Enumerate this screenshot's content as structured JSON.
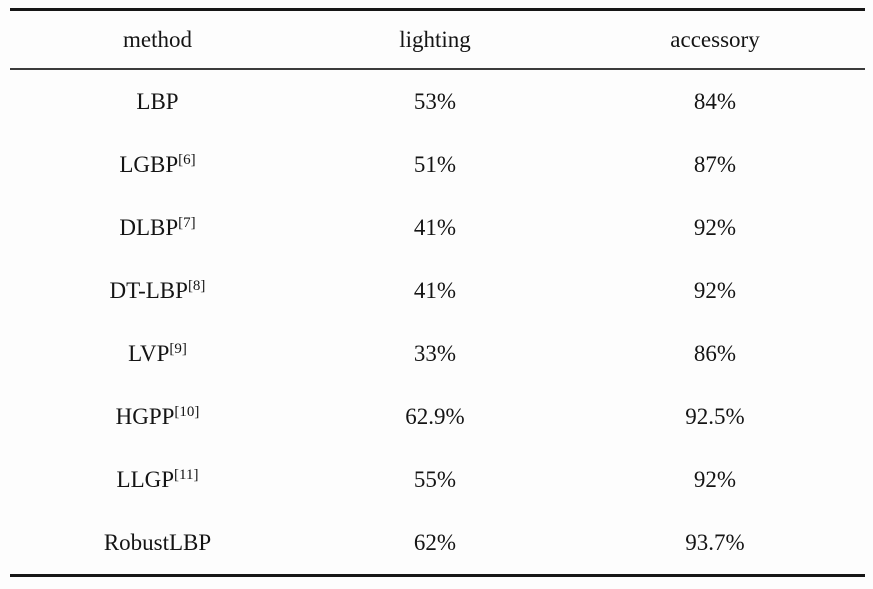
{
  "table": {
    "columns": [
      "method",
      "lighting",
      "accessory"
    ],
    "rows": [
      {
        "method": "LBP",
        "ref": "",
        "lighting": "53%",
        "accessory": "84%"
      },
      {
        "method": "LGBP",
        "ref": "[6]",
        "lighting": "51%",
        "accessory": "87%"
      },
      {
        "method": "DLBP",
        "ref": "[7]",
        "lighting": "41%",
        "accessory": "92%"
      },
      {
        "method": "DT-LBP",
        "ref": "[8]",
        "lighting": "41%",
        "accessory": "92%"
      },
      {
        "method": "LVP",
        "ref": "[9]",
        "lighting": "33%",
        "accessory": "86%"
      },
      {
        "method": "HGPP",
        "ref": "[10]",
        "lighting": "62.9%",
        "accessory": "92.5%"
      },
      {
        "method": "LLGP",
        "ref": "[11]",
        "lighting": "55%",
        "accessory": "92%"
      },
      {
        "method": "RobustLBP",
        "ref": "",
        "lighting": "62%",
        "accessory": "93.7%"
      }
    ]
  }
}
